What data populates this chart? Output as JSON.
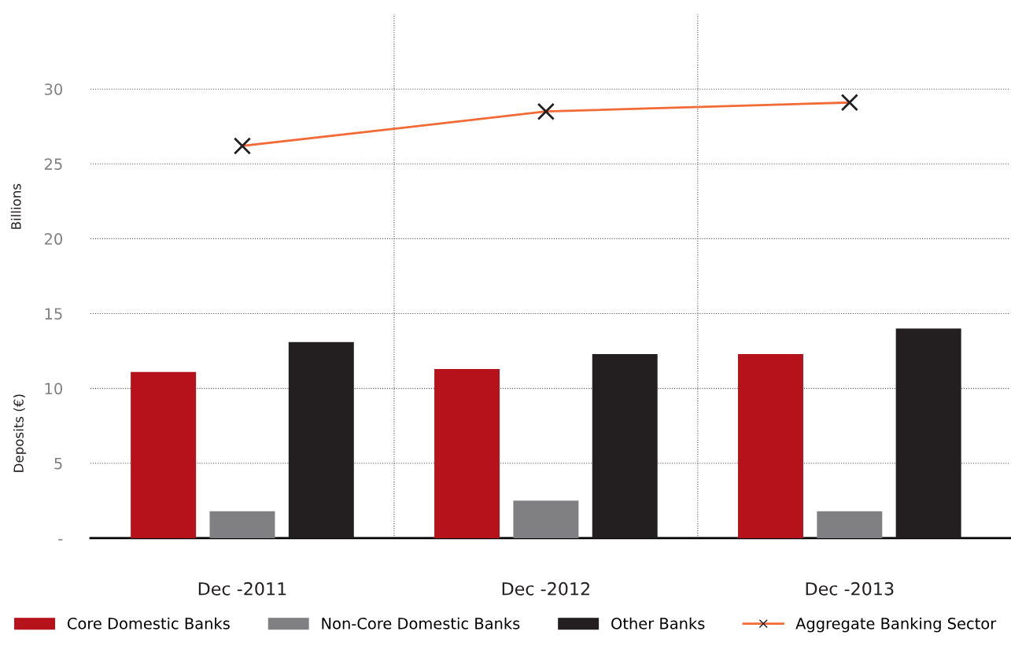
{
  "chart_data": {
    "type": "bar",
    "ylabel": "Deposits (€)",
    "annotations": [
      "Billions"
    ],
    "categories": [
      "Dec -2011",
      "Dec -2012",
      "Dec -2013"
    ],
    "series": [
      {
        "name": "Core Domestic Banks",
        "color": "#b5121b",
        "values": [
          11.1,
          11.3,
          12.3
        ]
      },
      {
        "name": "Non-Core Domestic Banks",
        "color": "#808083",
        "values": [
          1.8,
          2.5,
          1.8
        ]
      },
      {
        "name": "Other Banks",
        "color": "#231f20",
        "values": [
          13.1,
          12.3,
          14.0
        ]
      },
      {
        "name": "Aggregate Banking Sector",
        "type": "line",
        "color": "#f26a36",
        "marker": "cross",
        "values": [
          26.2,
          28.5,
          29.1
        ]
      }
    ],
    "ylim": [
      0,
      35
    ],
    "yticks": [
      {
        "value": 0,
        "label": "-"
      },
      5,
      10,
      15,
      20,
      25,
      30
    ],
    "grid": true,
    "legend": "bottom"
  }
}
